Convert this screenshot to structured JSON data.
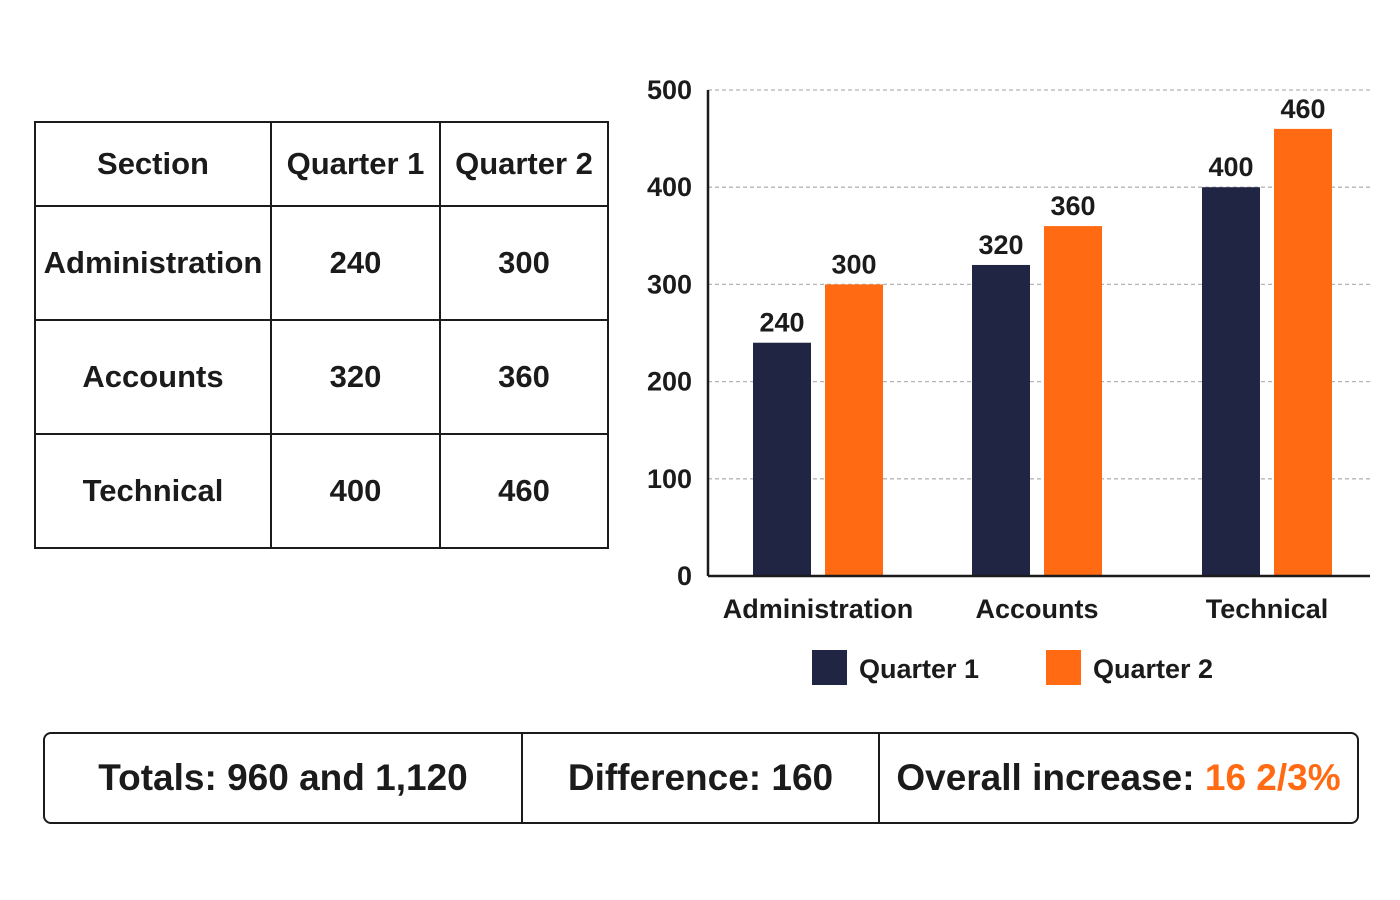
{
  "table": {
    "headers": [
      "Section",
      "Quarter 1",
      "Quarter 2"
    ],
    "rows": [
      [
        "Administration",
        "240",
        "300"
      ],
      [
        "Accounts",
        "320",
        "360"
      ],
      [
        "Technical",
        "400",
        "460"
      ]
    ]
  },
  "chart_data": {
    "type": "bar",
    "categories": [
      "Administration",
      "Accounts",
      "Technical"
    ],
    "series": [
      {
        "name": "Quarter 1",
        "values": [
          240,
          320,
          400
        ],
        "color": "#212544"
      },
      {
        "name": "Quarter 2",
        "values": [
          300,
          360,
          460
        ],
        "color": "#ff6a13"
      }
    ],
    "title": "",
    "xlabel": "",
    "ylabel": "",
    "ylim": [
      0,
      500
    ],
    "yticks": [
      0,
      100,
      200,
      300,
      400,
      500
    ],
    "grid": true,
    "legend_position": "bottom"
  },
  "summary": {
    "totals": "Totals: 960 and 1,120",
    "difference": "Difference:  160",
    "increase_label": "Overall increase: ",
    "increase_value": "16 2/3%"
  },
  "colors": {
    "accent": "#ff6a13",
    "navy": "#212544"
  }
}
